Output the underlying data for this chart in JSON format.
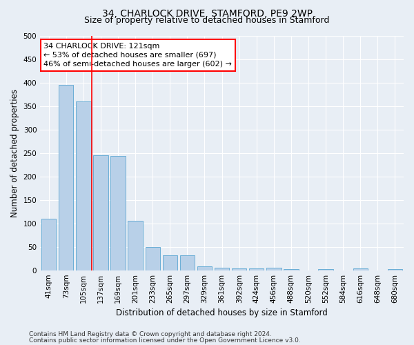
{
  "title1": "34, CHARLOCK DRIVE, STAMFORD, PE9 2WP",
  "title2": "Size of property relative to detached houses in Stamford",
  "xlabel": "Distribution of detached houses by size in Stamford",
  "ylabel": "Number of detached properties",
  "bar_labels": [
    "41sqm",
    "73sqm",
    "105sqm",
    "137sqm",
    "169sqm",
    "201sqm",
    "233sqm",
    "265sqm",
    "297sqm",
    "329sqm",
    "361sqm",
    "392sqm",
    "424sqm",
    "456sqm",
    "488sqm",
    "520sqm",
    "552sqm",
    "584sqm",
    "616sqm",
    "648sqm",
    "680sqm"
  ],
  "bar_values": [
    110,
    395,
    360,
    245,
    243,
    105,
    50,
    32,
    32,
    9,
    6,
    4,
    4,
    6,
    2,
    0,
    3,
    0,
    4,
    0,
    2
  ],
  "bar_color": "#b8d0e8",
  "bar_edge_color": "#6aaed6",
  "red_line_x": 2.5,
  "annotation_title": "34 CHARLOCK DRIVE: 121sqm",
  "annotation_line1": "← 53% of detached houses are smaller (697)",
  "annotation_line2": "46% of semi-detached houses are larger (602) →",
  "ylim": [
    0,
    500
  ],
  "yticks": [
    0,
    50,
    100,
    150,
    200,
    250,
    300,
    350,
    400,
    450,
    500
  ],
  "footer1": "Contains HM Land Registry data © Crown copyright and database right 2024.",
  "footer2": "Contains public sector information licensed under the Open Government Licence v3.0.",
  "background_color": "#e8eef5",
  "grid_color": "#ffffff",
  "title1_fontsize": 10,
  "title2_fontsize": 9,
  "xlabel_fontsize": 8.5,
  "ylabel_fontsize": 8.5,
  "tick_fontsize": 7.5,
  "annotation_fontsize": 8,
  "footer_fontsize": 6.5
}
